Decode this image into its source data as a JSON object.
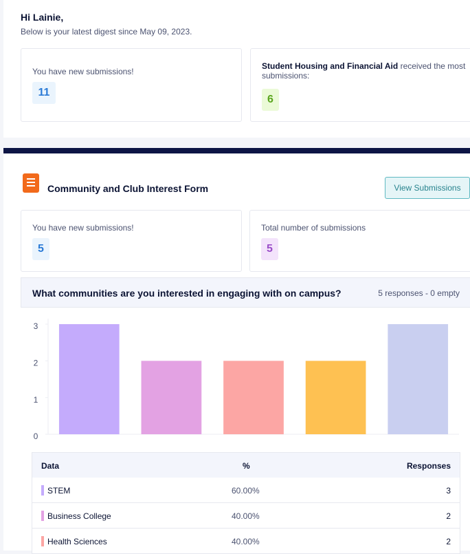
{
  "greeting": "Hi Lainie,",
  "digest_note": "Below is your latest digest since May 09, 2023.",
  "summary": {
    "new_label": "You have new submissions!",
    "new_count": "11",
    "top_form": "Student Housing and Financial Aid",
    "top_suffix": "received the most submissions:",
    "top_count": "6"
  },
  "form": {
    "title": "Community and Club Interest Form",
    "button": "View Submissions",
    "new_label": "You have new submissions!",
    "new_count": "5",
    "total_label": "Total number of submissions",
    "total_count": "5"
  },
  "question": {
    "title": "What communities are you interested in engaging with on campus?",
    "meta": "5 responses - 0 empty"
  },
  "chart_data": {
    "type": "bar",
    "categories": [
      null,
      null,
      null,
      null,
      null
    ],
    "values": [
      3,
      2,
      2,
      2,
      3
    ],
    "colors": [
      "#c4abfc",
      "#e3a2e3",
      "#fca6a4",
      "#fec152",
      "#c9cff0"
    ],
    "ylim": [
      0,
      3
    ],
    "yticks": [
      0,
      1,
      2,
      3
    ]
  },
  "table": {
    "header": [
      "Data",
      "%",
      "Responses"
    ],
    "rows": [
      [
        "STEM",
        "60.00%",
        "3"
      ],
      [
        "Business College",
        "40.00%",
        "2"
      ],
      [
        "Health Sciences",
        "40.00%",
        "2"
      ]
    ]
  }
}
